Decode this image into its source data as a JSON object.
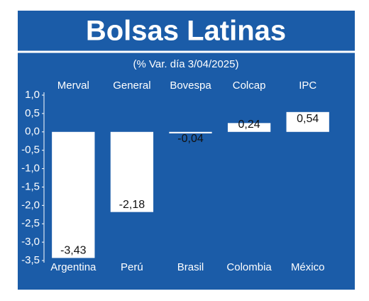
{
  "chart_data": {
    "type": "bar",
    "title": "Bolsas Latinas",
    "subtitle": "(% Var. día 3/04/2025)",
    "indices": [
      "Merval",
      "General",
      "Bovespa",
      "Colcap",
      "IPC"
    ],
    "categories": [
      "Argentina",
      "Perú",
      "Brasil",
      "Colombia",
      "México"
    ],
    "values": [
      -3.43,
      -2.18,
      -0.04,
      0.24,
      0.54
    ],
    "value_labels": [
      "-3,43",
      "-2,18",
      "-0,04",
      "0,24",
      "0,54"
    ],
    "color": "#ffffff",
    "ylim": [
      -3.5,
      1.0
    ],
    "yticks": [
      {
        "value": 1.0,
        "label": "1,0"
      },
      {
        "value": 0.5,
        "label": "0,5"
      },
      {
        "value": 0,
        "label": "0,0"
      },
      {
        "value": -0.5,
        "label": "-0,5"
      },
      {
        "value": -1.0,
        "label": "-1,0"
      },
      {
        "value": -1.5,
        "label": "-1,5"
      },
      {
        "value": -2.0,
        "label": "-2,0"
      },
      {
        "value": -2.5,
        "label": "-2,5"
      },
      {
        "value": -3.0,
        "label": "-3,0"
      },
      {
        "value": -3.5,
        "label": "-3,5"
      }
    ]
  }
}
